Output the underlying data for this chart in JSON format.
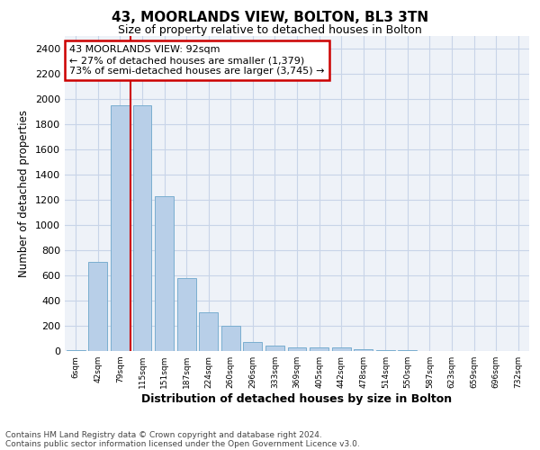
{
  "title1": "43, MOORLANDS VIEW, BOLTON, BL3 3TN",
  "title2": "Size of property relative to detached houses in Bolton",
  "xlabel": "Distribution of detached houses by size in Bolton",
  "ylabel": "Number of detached properties",
  "categories": [
    "6sqm",
    "42sqm",
    "79sqm",
    "115sqm",
    "151sqm",
    "187sqm",
    "224sqm",
    "260sqm",
    "296sqm",
    "333sqm",
    "369sqm",
    "405sqm",
    "442sqm",
    "478sqm",
    "514sqm",
    "550sqm",
    "587sqm",
    "623sqm",
    "659sqm",
    "696sqm",
    "732sqm"
  ],
  "values": [
    10,
    710,
    1950,
    1950,
    1230,
    580,
    305,
    200,
    75,
    40,
    30,
    30,
    30,
    15,
    5,
    10,
    2,
    1,
    1,
    1,
    1
  ],
  "bar_color": "#b8cfe8",
  "bar_edge_color": "#7aaed0",
  "vline_color": "#cc0000",
  "annotation_line1": "43 MOORLANDS VIEW: 92sqm",
  "annotation_line2": "← 27% of detached houses are smaller (1,379)",
  "annotation_line3": "73% of semi-detached houses are larger (3,745) →",
  "annotation_box_color": "#cc0000",
  "ylim": [
    0,
    2500
  ],
  "yticks": [
    0,
    200,
    400,
    600,
    800,
    1000,
    1200,
    1400,
    1600,
    1800,
    2000,
    2200,
    2400
  ],
  "grid_color": "#c8d4e8",
  "background_color": "#eef2f8",
  "footer_line1": "Contains HM Land Registry data © Crown copyright and database right 2024.",
  "footer_line2": "Contains public sector information licensed under the Open Government Licence v3.0.",
  "bar_width": 0.85,
  "vline_pos": 2.47
}
